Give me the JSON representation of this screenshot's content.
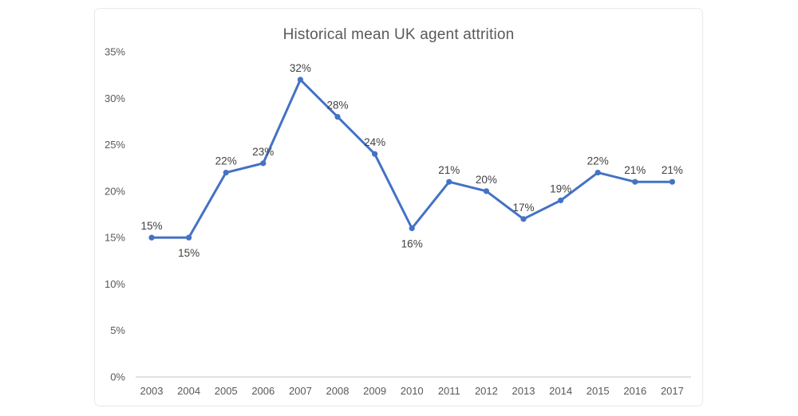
{
  "chart_data": {
    "type": "line",
    "title": "Historical mean UK agent attrition",
    "categories": [
      "2003",
      "2004",
      "2005",
      "2006",
      "2007",
      "2008",
      "2009",
      "2010",
      "2011",
      "2012",
      "2013",
      "2014",
      "2015",
      "2016",
      "2017"
    ],
    "values": [
      15,
      15,
      22,
      23,
      32,
      28,
      24,
      16,
      21,
      20,
      17,
      19,
      22,
      21,
      21
    ],
    "data_labels": [
      "15%",
      "15%",
      "22%",
      "23%",
      "32%",
      "28%",
      "24%",
      "16%",
      "21%",
      "20%",
      "17%",
      "19%",
      "22%",
      "21%",
      "21%"
    ],
    "label_position": [
      "above",
      "below",
      "above",
      "above",
      "above",
      "above",
      "above",
      "below",
      "above",
      "above",
      "above",
      "above",
      "above",
      "above",
      "above"
    ],
    "y_ticks": [
      "0%",
      "5%",
      "10%",
      "15%",
      "20%",
      "25%",
      "30%",
      "35%"
    ],
    "y_tick_values": [
      0,
      5,
      10,
      15,
      20,
      25,
      30,
      35
    ],
    "ylim": [
      0,
      35
    ],
    "xlabel": "",
    "ylabel": "",
    "grid": false,
    "legend": "none",
    "marker": "circle"
  },
  "colors": {
    "series": "#4472C4",
    "axis_text": "#595959",
    "data_label": "#404040",
    "axis_line": "#D9D9D9",
    "card_border": "#E9E9E9",
    "title_text": "#595959",
    "background": "#FFFFFF"
  }
}
